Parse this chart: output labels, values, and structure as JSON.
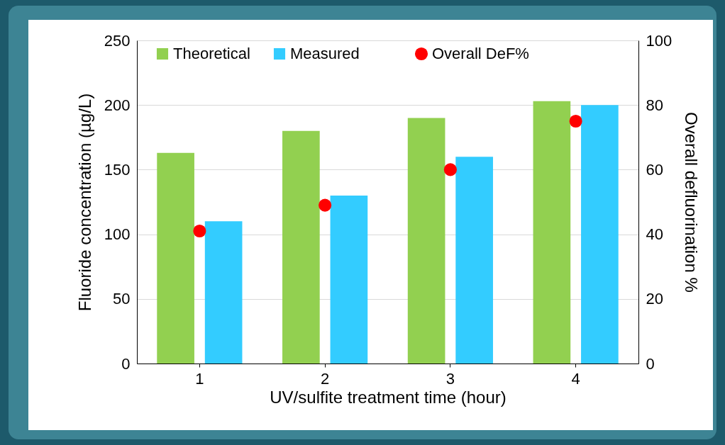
{
  "chart_data": {
    "type": "bar",
    "xlabel": "UV/sulfite treatment time (hour)",
    "ylabel": "Fluoride concentration (µg/L)",
    "y2label": "Overall defluorination %",
    "categories": [
      "1",
      "2",
      "3",
      "4"
    ],
    "series": [
      {
        "name": "Theoretical",
        "color": "#92d050",
        "values": [
          163,
          180,
          190,
          203
        ]
      },
      {
        "name": "Measured",
        "color": "#33ccff",
        "values": [
          110,
          130,
          160,
          200
        ]
      },
      {
        "name": "Overall DeF%",
        "color": "#ff0000",
        "type": "scatter",
        "axis": "y2",
        "values": [
          41,
          49,
          60,
          75
        ]
      }
    ],
    "ylim": [
      0,
      250
    ],
    "yticks": [
      0,
      50,
      100,
      150,
      200,
      250
    ],
    "y2lim": [
      0,
      100
    ],
    "y2ticks": [
      0,
      20,
      40,
      60,
      80,
      100
    ],
    "grid": "y",
    "legend": "top",
    "marker": "circle"
  }
}
